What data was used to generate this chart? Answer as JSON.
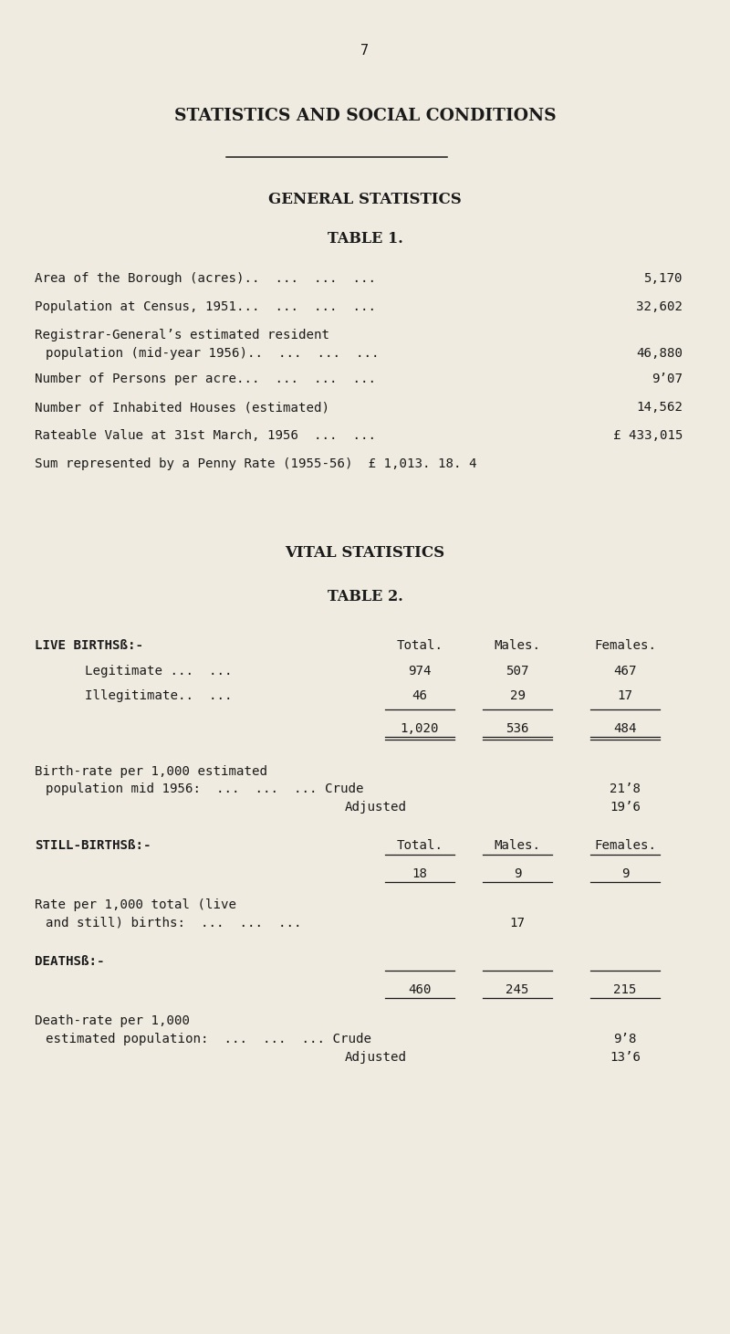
{
  "page_number": "7",
  "bg_color": "#F0EBE0",
  "text_color": "#1a1a1a",
  "main_title": "STATISTICS AND SOCIAL CONDITIONS",
  "section1_title": "GENERAL STATISTICS",
  "table1_title": "TABLE 1.",
  "section2_title": "VITAL STATISTICS",
  "table2_title": "TABLE 2.",
  "live_births_label": "LIVE BIRTHSß:-",
  "col_headers": [
    "Total.",
    "Males.",
    "Females."
  ],
  "still_births_label": "STILL-BIRTHSß:-",
  "deaths_label": "DEATHSß:-",
  "birth_rate_crude_value": "21’8",
  "birth_rate_adj_value": "19’6",
  "death_rate_crude_value": "9’8",
  "death_rate_adj_value": "13’6"
}
